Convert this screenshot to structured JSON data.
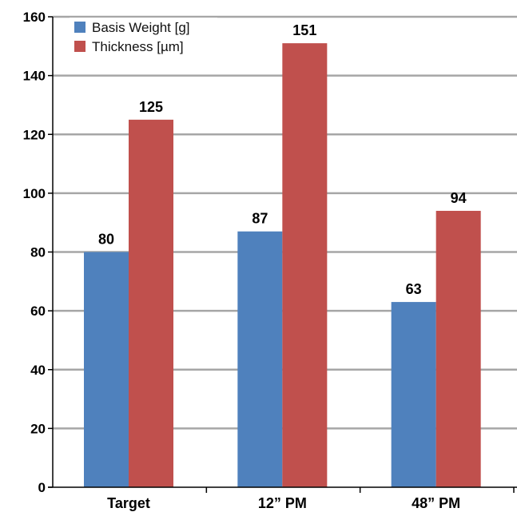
{
  "chart_data": {
    "type": "bar",
    "categories": [
      "Target",
      "12” PM",
      "48” PM"
    ],
    "series": [
      {
        "name": "Basis Weight [g]",
        "values": [
          80,
          87,
          63
        ],
        "color": "#4f81bd"
      },
      {
        "name": "Thickness [µm]",
        "values": [
          125,
          151,
          94
        ],
        "color": "#c0504d"
      }
    ],
    "title": "",
    "xlabel": "",
    "ylabel": "",
    "ylim": [
      0,
      160
    ],
    "yticks": [
      0,
      20,
      40,
      60,
      80,
      100,
      120,
      140,
      160
    ],
    "grid": true,
    "legend_position": "top-left",
    "colors": {
      "grid": "#a6a6a6",
      "axis": "#000000"
    }
  }
}
